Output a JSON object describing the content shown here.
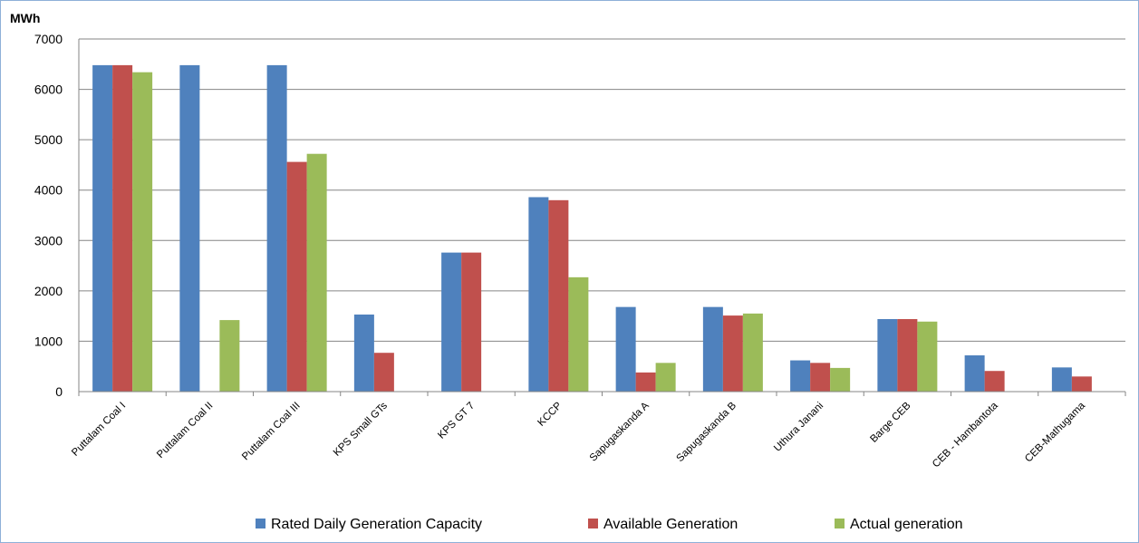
{
  "chart_data": {
    "type": "bar",
    "ylabel": "MWh",
    "ylim": [
      0,
      7000
    ],
    "ytick_step": 1000,
    "grid": true,
    "legend_position": "bottom",
    "categories": [
      "Puttalam Coal I",
      "Puttalam Coal II",
      "Puttalam Coal III",
      "KPS Small GTs",
      "KPS GT 7",
      "KCCP",
      "Sapugaskanda A",
      "Sapugaskanda B",
      "Uthura Janani",
      "Barge CEB",
      "CEB - Hambantota",
      "CEB-Mathugama"
    ],
    "series": [
      {
        "name": "Rated Daily Generation Capacity",
        "color": "#4f81bd",
        "values": [
          6480,
          6480,
          6480,
          1530,
          2760,
          3860,
          1680,
          1680,
          620,
          1440,
          720,
          480
        ]
      },
      {
        "name": "Available Generation",
        "color": "#c0504d",
        "values": [
          6480,
          0,
          4560,
          770,
          2760,
          3800,
          380,
          1510,
          570,
          1440,
          410,
          300
        ]
      },
      {
        "name": "Actual generation",
        "color": "#9bbb59",
        "values": [
          6340,
          1420,
          4720,
          0,
          0,
          2270,
          570,
          1550,
          470,
          1390,
          0,
          0
        ]
      }
    ]
  }
}
